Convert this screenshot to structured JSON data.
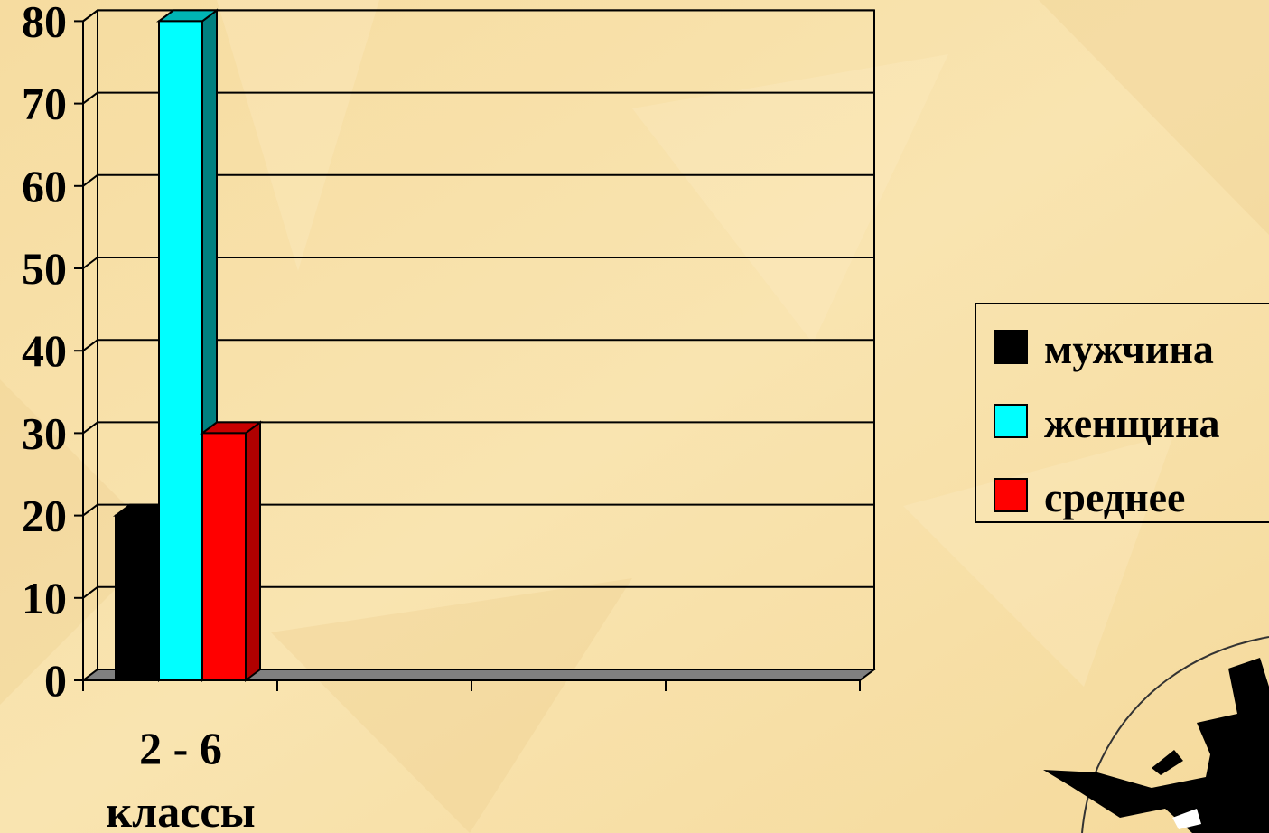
{
  "chart_data": {
    "type": "bar",
    "title": "",
    "xlabel": "",
    "ylabel": "",
    "categories": [
      "2 - 6 классы"
    ],
    "category_lines": [
      "2 - 6",
      "классы"
    ],
    "ylim": [
      0,
      80
    ],
    "yticks": [
      0,
      10,
      20,
      30,
      40,
      50,
      60,
      70,
      80
    ],
    "grid": true,
    "legend_position": "right",
    "series": [
      {
        "name": "мужчина",
        "values": [
          20
        ],
        "color": "#000000",
        "side_color": "#000000",
        "top_color": "#000000"
      },
      {
        "name": "женщина",
        "values": [
          80
        ],
        "color": "#00FFFF",
        "side_color": "#008080",
        "top_color": "#00B5B5"
      },
      {
        "name": "среднее",
        "values": [
          30
        ],
        "color": "#FF0000",
        "side_color": "#B00000",
        "top_color": "#C80000"
      }
    ]
  },
  "colors": {
    "background": "#F7DFA5",
    "floor": "#808080",
    "grid": "#000000"
  },
  "decoration": {
    "icon": "witch-silhouette-icon"
  }
}
